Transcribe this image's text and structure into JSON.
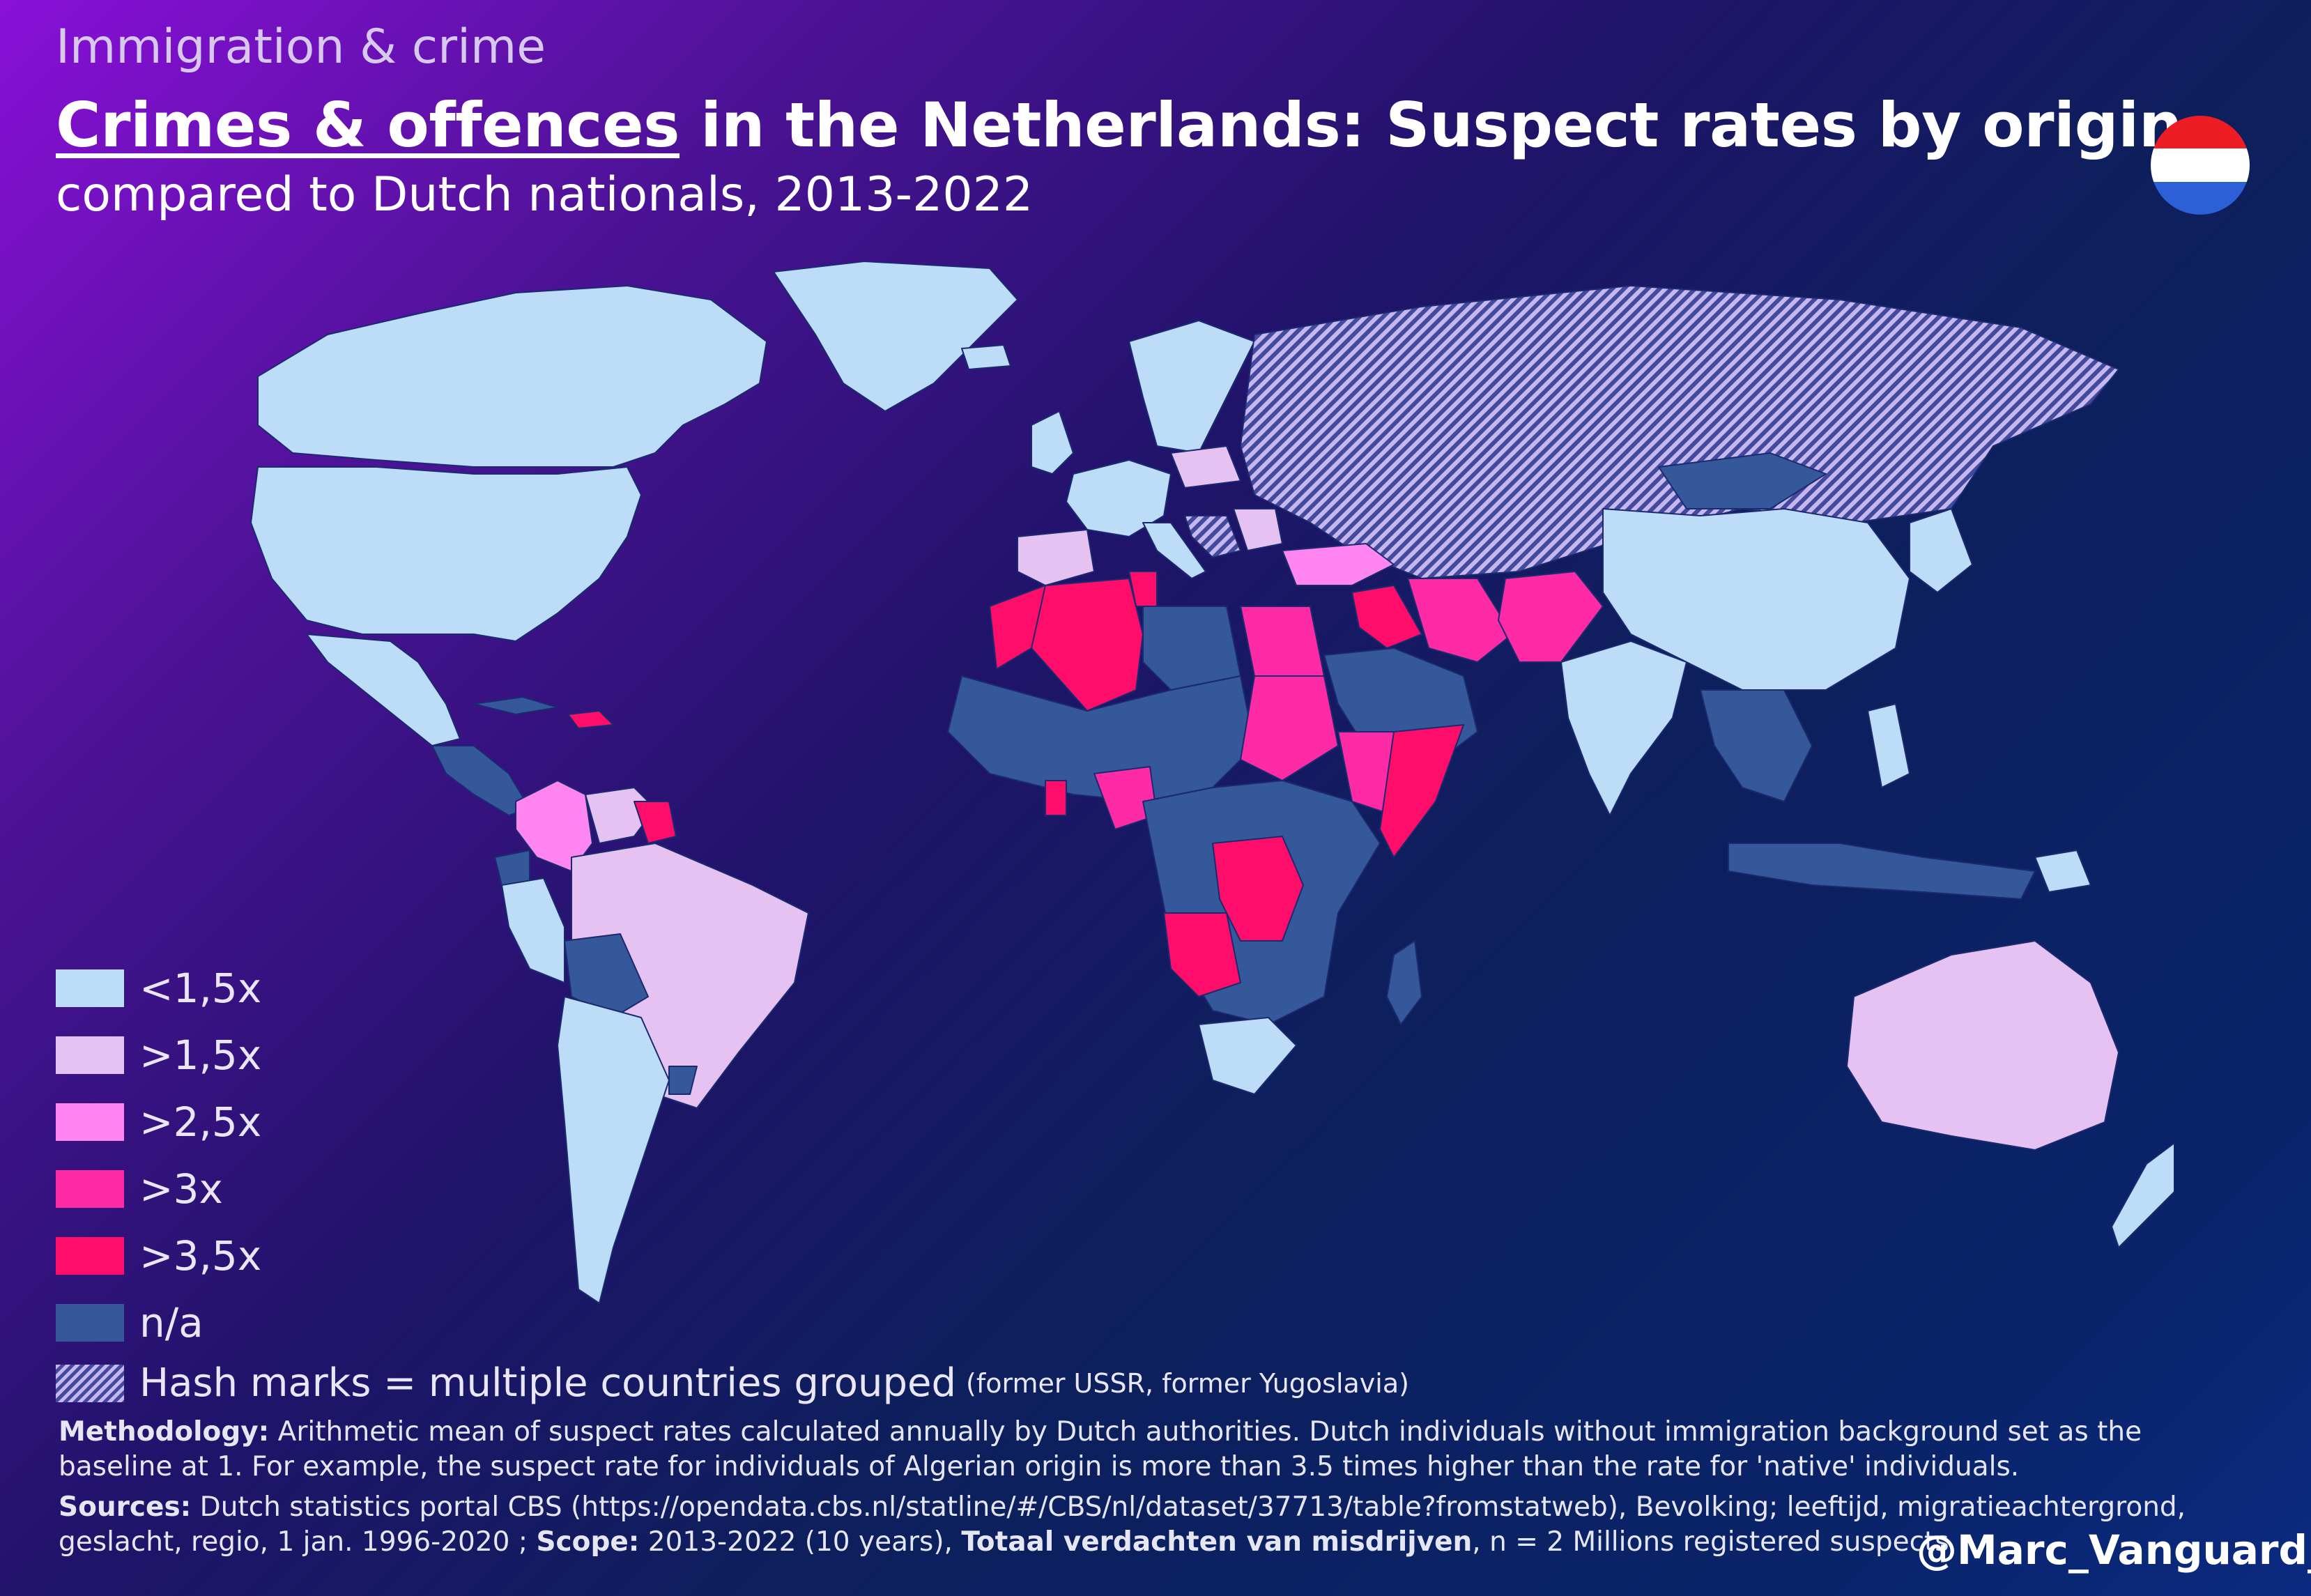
{
  "header": {
    "kicker": "Immigration & crime",
    "title_underlined": "Crimes & offences",
    "title_rest": " in the Netherlands: Suspect rates by origin",
    "subtitle": "compared to Dutch nationals, 2013-2022"
  },
  "flag": {
    "colors": [
      "#ee1c25",
      "#ffffff",
      "#2d5fd6"
    ]
  },
  "colors": {
    "lt_1_5": "#bcdcf8",
    "gt_1_5": "#e6c2f2",
    "gt_2_5": "#ff86f0",
    "gt_3": "#ff2aa5",
    "gt_3_5": "#ff0d6b",
    "na": "#35589a",
    "hatch": "#c7b7ef"
  },
  "legend": [
    {
      "label": "<1,5x",
      "color": "#bcdcf8"
    },
    {
      "label": ">1,5x",
      "color": "#e6c2f2"
    },
    {
      "label": ">2,5x",
      "color": "#ff86f0"
    },
    {
      "label": ">3x",
      "color": "#ff2aa5"
    },
    {
      "label": ">3,5x",
      "color": "#ff0d6b"
    },
    {
      "label": "n/a",
      "color": "#35589a"
    }
  ],
  "hash_note": {
    "label": "Hash marks = multiple countries grouped",
    "detail": "(former USSR, former Yugoslavia)"
  },
  "methodology": {
    "label": "Methodology:",
    "text": " Arithmetic mean of suspect rates calculated annually by Dutch authorities. Dutch individuals without immigration background set as the baseline at 1. For example, the suspect rate for individuals of Algerian origin is more than 3.5 times higher than the rate for 'native' individuals."
  },
  "sources": {
    "label": "Sources:",
    "text": " Dutch statistics portal CBS (https://opendata.cbs.nl/statline/#/CBS/nl/dataset/37713/table?fromstatweb), Bevolking; leeftijd, migratieachtergrond, geslacht, regio, 1 jan. 1996-2020 ; ",
    "scope_label": "Scope:",
    "scope_text": " 2013-2022 (10 years), ",
    "total_label": "Totaal verdachten van misdrijven",
    "total_text": ", n = 2 Millions registered suspects"
  },
  "handle": "@Marc_Vanguard_i"
}
